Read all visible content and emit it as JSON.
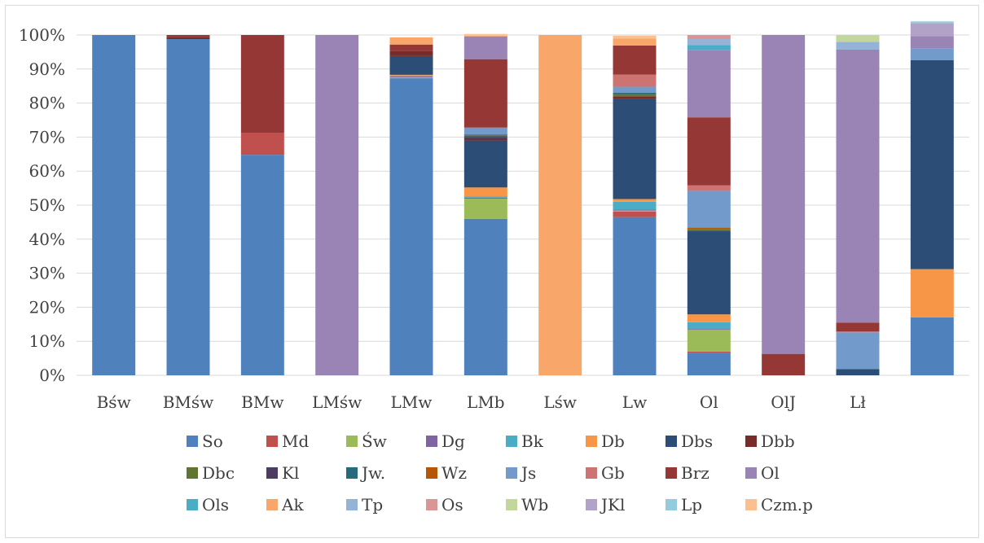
{
  "chart_data": {
    "type": "bar",
    "stacked": true,
    "percent": true,
    "categories": [
      "Bśw",
      "BMśw",
      "BMw",
      "LMśw",
      "LMw",
      "LMb",
      "Lśw",
      "Lw",
      "Ol",
      "OlJ",
      "Lł",
      ""
    ],
    "ylim": [
      0,
      100
    ],
    "yticks": [
      "0%",
      "10%",
      "20%",
      "30%",
      "40%",
      "50%",
      "60%",
      "70%",
      "80%",
      "90%",
      "100%"
    ],
    "grid": true,
    "legend_position": "bottom",
    "series": [
      {
        "name": "So",
        "color": "#4f81bd",
        "values": [
          100,
          98.8,
          64.8,
          0,
          87.3,
          46.0,
          0,
          46.5,
          6.5,
          0,
          0,
          17.0
        ]
      },
      {
        "name": "Md",
        "color": "#c0504d",
        "values": [
          0,
          0,
          6.4,
          0,
          0,
          0,
          0,
          1.6,
          0.5,
          0,
          0,
          0
        ]
      },
      {
        "name": "Św",
        "color": "#9bbb59",
        "values": [
          0,
          0,
          0,
          0,
          0.3,
          5.9,
          0,
          0.3,
          6.4,
          0,
          0,
          0
        ]
      },
      {
        "name": "Dg",
        "color": "#8064a2",
        "values": [
          0,
          0,
          0,
          0,
          0.2,
          0.3,
          0,
          0.3,
          0.2,
          0,
          0,
          0
        ]
      },
      {
        "name": "Bk",
        "color": "#4bacc6",
        "values": [
          0,
          0,
          0,
          0,
          0.3,
          0.4,
          0,
          2.3,
          2.0,
          0,
          0,
          0
        ]
      },
      {
        "name": "Db",
        "color": "#f79646",
        "values": [
          0,
          0,
          0,
          0,
          0.2,
          2.6,
          0,
          0.8,
          2.3,
          0,
          0,
          14.2
        ]
      },
      {
        "name": "Dbs",
        "color": "#2c4d75",
        "values": [
          0,
          0,
          0,
          0,
          5.5,
          13.8,
          0,
          29.4,
          24.6,
          0,
          1.8,
          61.4
        ]
      },
      {
        "name": "Dbb",
        "color": "#772c2a",
        "values": [
          0,
          0.5,
          0,
          0,
          1.5,
          0.5,
          0,
          0.8,
          0,
          0,
          0,
          0
        ]
      },
      {
        "name": "Dbc",
        "color": "#5f7530",
        "values": [
          0,
          0,
          0,
          0,
          0,
          0,
          0,
          0.5,
          0.5,
          0,
          0,
          0
        ]
      },
      {
        "name": "Kl",
        "color": "#4d3b62",
        "values": [
          0,
          0,
          0,
          0,
          0,
          0.5,
          0,
          0,
          0,
          0,
          0,
          0
        ]
      },
      {
        "name": "Jw.",
        "color": "#276a7c",
        "values": [
          0,
          0,
          0,
          0,
          0,
          0.5,
          0,
          0.5,
          0,
          0,
          0,
          0
        ]
      },
      {
        "name": "Wz",
        "color": "#b65708",
        "values": [
          0,
          0,
          0,
          0,
          0,
          0.3,
          0,
          0,
          0.4,
          0,
          0,
          0
        ]
      },
      {
        "name": "Js",
        "color": "#729aca",
        "values": [
          0,
          0,
          0,
          0,
          0,
          2.0,
          0,
          1.8,
          10.8,
          0,
          10.8,
          3.4
        ]
      },
      {
        "name": "Gb",
        "color": "#cd7371",
        "values": [
          0,
          0,
          0,
          0,
          0,
          0,
          0,
          3.6,
          1.6,
          0,
          0.3,
          0
        ]
      },
      {
        "name": "Brz",
        "color": "#953735",
        "values": [
          0,
          0.7,
          28.8,
          0,
          1.9,
          20.1,
          0,
          8.5,
          20.0,
          6.3,
          2.6,
          0
        ]
      },
      {
        "name": "Ol",
        "color": "#9a84b6",
        "values": [
          0,
          0,
          0,
          100,
          0,
          6.7,
          0,
          0,
          19.7,
          93.7,
          80.2,
          3.7
        ]
      },
      {
        "name": "Ols",
        "color": "#4bacc6",
        "values": [
          0,
          0,
          0,
          0,
          0,
          0,
          0,
          0,
          1.5,
          0,
          0,
          0
        ]
      },
      {
        "name": "Ak",
        "color": "#f9a66b",
        "values": [
          0,
          0,
          0,
          0,
          2.1,
          0.2,
          100,
          2.1,
          0,
          0,
          0,
          0
        ]
      },
      {
        "name": "Tp",
        "color": "#95b3d7",
        "values": [
          0,
          0,
          0,
          0,
          0,
          0,
          0,
          0,
          1.8,
          0,
          2.3,
          0
        ]
      },
      {
        "name": "Os",
        "color": "#d99694",
        "values": [
          0,
          0,
          0,
          0,
          0,
          0,
          0,
          0,
          1.2,
          0,
          0,
          0
        ]
      },
      {
        "name": "Wb",
        "color": "#c3d69b",
        "values": [
          0,
          0,
          0,
          0,
          0,
          0,
          0,
          0,
          0,
          0,
          2.0,
          0
        ]
      },
      {
        "name": "JKl",
        "color": "#b2a2c7",
        "values": [
          0,
          0,
          0,
          0,
          0,
          0,
          0,
          0,
          0,
          0,
          0,
          3.8
        ]
      },
      {
        "name": "Lp",
        "color": "#93cddd",
        "values": [
          0,
          0,
          0,
          0,
          0,
          0,
          0,
          0,
          0,
          0,
          0,
          0.5
        ]
      },
      {
        "name": "Czm.p",
        "color": "#fac090",
        "values": [
          0,
          0,
          0,
          0,
          0,
          0.5,
          0,
          0.8,
          0,
          0,
          0,
          0
        ]
      }
    ]
  }
}
